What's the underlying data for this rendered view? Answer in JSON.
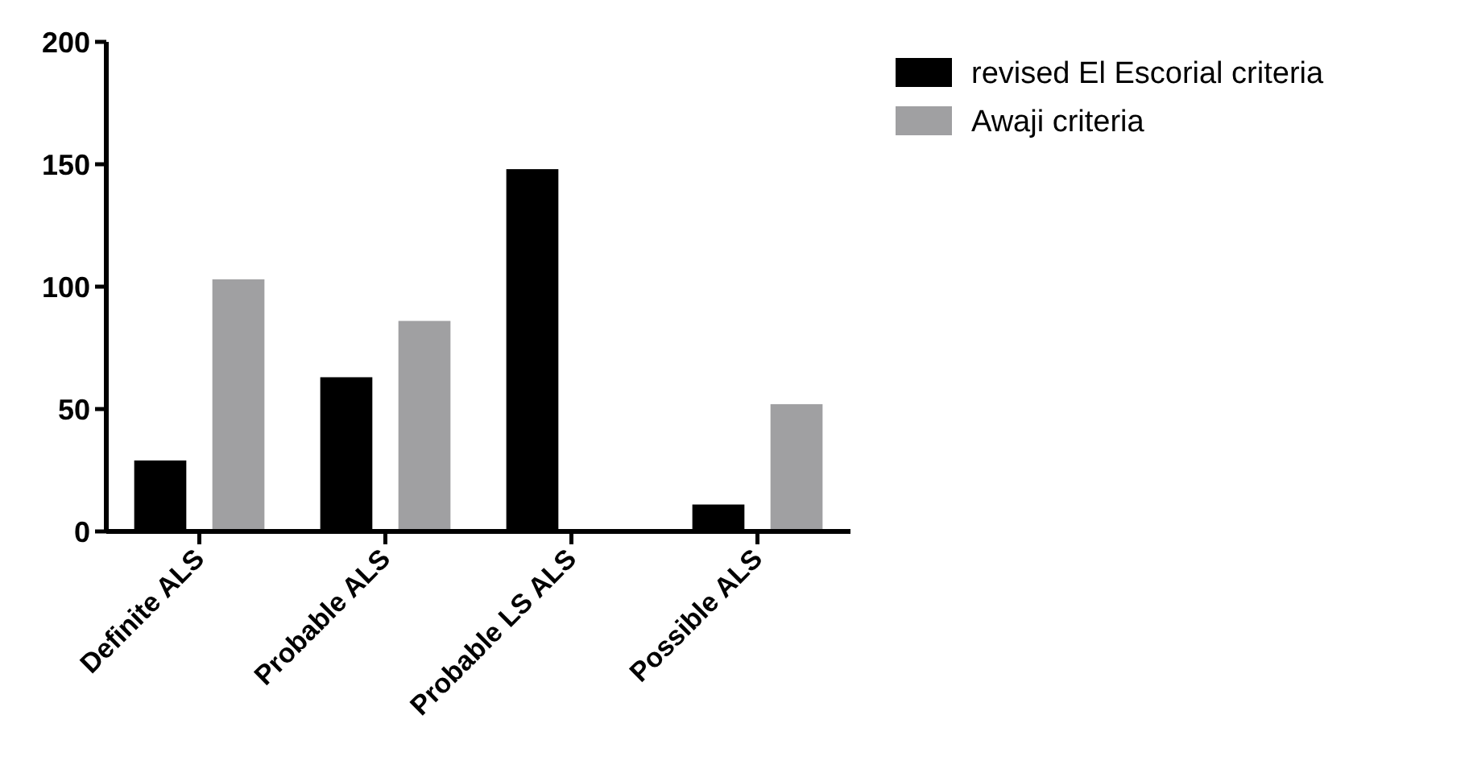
{
  "chart_data": {
    "type": "bar",
    "categories": [
      "Definite ALS",
      "Probable ALS",
      "Probable LS ALS",
      "Possible ALS"
    ],
    "series": [
      {
        "name": "revised El Escorial criteria",
        "color": "#000000",
        "values": [
          29,
          63,
          148,
          11
        ]
      },
      {
        "name": "Awaji criteria",
        "color": "#a0a0a2",
        "values": [
          103,
          86,
          0,
          52
        ]
      }
    ],
    "ylim": [
      0,
      200
    ],
    "yticks": [
      0,
      50,
      100,
      150,
      200
    ],
    "grid": false,
    "legend": "top right"
  }
}
